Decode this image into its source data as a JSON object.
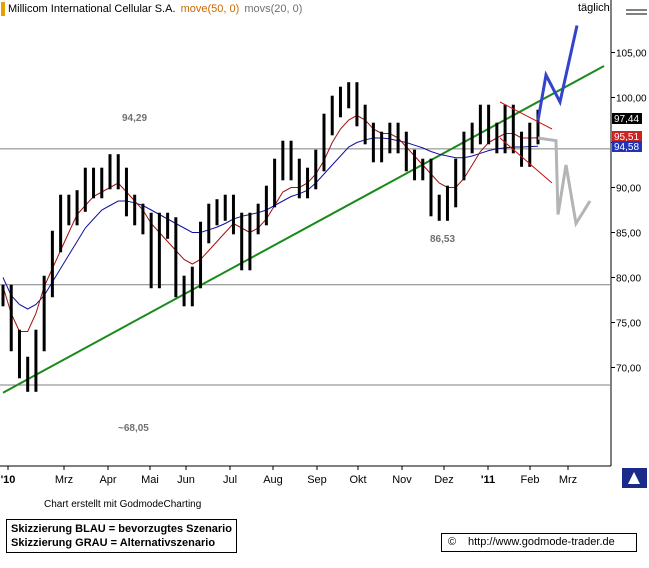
{
  "title": {
    "name": "Millicom International Cellular S.A.",
    "ind1": "move(50, 0)",
    "ind2": "movs(20, 0)",
    "interval": "täglich"
  },
  "footer": {
    "credit": "Chart erstellt mit GodmodeCharting",
    "legend_blue": "Skizzierung BLAU = bevorzugtes Szenario",
    "legend_grey": "Skizzierung GRAU = Alternativszenario",
    "copyright": "©",
    "url": "http://www.godmode-trader.de"
  },
  "colors": {
    "price": "#000000",
    "ma50": "#1010a0",
    "ma20": "#a01010",
    "trendline": "#1a8a1a",
    "blue_scenario": "#3344cc",
    "grey_scenario": "#b4b4b4",
    "channel": "#cc1111",
    "price_badge": "#000000",
    "ma20_badge": "#cc2222",
    "ma50_badge": "#2233bb"
  },
  "chart_data": {
    "type": "ohlc",
    "y_axis": {
      "min": 65,
      "max": 108,
      "ticks": [
        70,
        75,
        80,
        85,
        90,
        95,
        100,
        105
      ],
      "tick_labels": [
        "70,00",
        "75,00",
        "80,00",
        "85,00",
        "90,00",
        "95,00",
        "100,00",
        "105,00"
      ]
    },
    "x_axis": {
      "labels": [
        "'10",
        "Mrz",
        "Apr",
        "Mai",
        "Jun",
        "Jul",
        "Aug",
        "Sep",
        "Okt",
        "Nov",
        "Dez",
        "'11",
        "Feb",
        "Mrz"
      ]
    },
    "grid": false,
    "horizontal_levels": [
      94.29,
      79.2,
      68.05
    ],
    "annotations": [
      {
        "text": "94,29",
        "x_month": "Apr",
        "value": 94.29
      },
      {
        "text": "86,53",
        "x_month": "Dez",
        "value": 86.53
      },
      {
        "text": "~68,05",
        "x_month": "Mrz",
        "value": 68.05
      }
    ],
    "last_values": {
      "price": "97,44",
      "ma20": "95,51",
      "ma50": "94,58"
    },
    "price_series": [
      {
        "x": "'10",
        "y": 78
      },
      {
        "x": "'10",
        "y": 73
      },
      {
        "x": "'10",
        "y": 70
      },
      {
        "x": "'10",
        "y": 68.5
      },
      {
        "x": "'10",
        "y": 73
      },
      {
        "x": "'10",
        "y": 79
      },
      {
        "x": "Mrz",
        "y": 84
      },
      {
        "x": "Mrz",
        "y": 88
      },
      {
        "x": "Mrz",
        "y": 87
      },
      {
        "x": "Mrz",
        "y": 88.5
      },
      {
        "x": "Mrz",
        "y": 91
      },
      {
        "x": "Apr",
        "y": 90
      },
      {
        "x": "Apr",
        "y": 91
      },
      {
        "x": "Apr",
        "y": 92.5
      },
      {
        "x": "Apr",
        "y": 91
      },
      {
        "x": "Apr",
        "y": 88
      },
      {
        "x": "Mai",
        "y": 87
      },
      {
        "x": "Mai",
        "y": 86
      },
      {
        "x": "Mai",
        "y": 80
      },
      {
        "x": "Mai",
        "y": 86
      },
      {
        "x": "Mai",
        "y": 85.5
      },
      {
        "x": "Mai",
        "y": 79
      },
      {
        "x": "Jun",
        "y": 78
      },
      {
        "x": "Jun",
        "y": 80
      },
      {
        "x": "Jun",
        "y": 85
      },
      {
        "x": "Jun",
        "y": 87
      },
      {
        "x": "Jun",
        "y": 87.5
      },
      {
        "x": "Jun",
        "y": 88
      },
      {
        "x": "Jul",
        "y": 86
      },
      {
        "x": "Jul",
        "y": 82
      },
      {
        "x": "Jul",
        "y": 86
      },
      {
        "x": "Jul",
        "y": 87
      },
      {
        "x": "Jul",
        "y": 89
      },
      {
        "x": "Aug",
        "y": 92
      },
      {
        "x": "Aug",
        "y": 94
      },
      {
        "x": "Aug",
        "y": 92
      },
      {
        "x": "Aug",
        "y": 90
      },
      {
        "x": "Sep",
        "y": 91
      },
      {
        "x": "Sep",
        "y": 93
      },
      {
        "x": "Sep",
        "y": 97
      },
      {
        "x": "Sep",
        "y": 99
      },
      {
        "x": "Okt",
        "y": 100
      },
      {
        "x": "Okt",
        "y": 100.5
      },
      {
        "x": "Okt",
        "y": 98
      },
      {
        "x": "Okt",
        "y": 96
      },
      {
        "x": "Okt",
        "y": 94
      },
      {
        "x": "Nov",
        "y": 95
      },
      {
        "x": "Nov",
        "y": 96
      },
      {
        "x": "Nov",
        "y": 95
      },
      {
        "x": "Nov",
        "y": 93
      },
      {
        "x": "Nov",
        "y": 92
      },
      {
        "x": "Dez",
        "y": 92
      },
      {
        "x": "Dez",
        "y": 88
      },
      {
        "x": "Dez",
        "y": 87.5
      },
      {
        "x": "Dez",
        "y": 89
      },
      {
        "x": "Dez",
        "y": 92
      },
      {
        "x": "'11",
        "y": 95
      },
      {
        "x": "'11",
        "y": 96
      },
      {
        "x": "'11",
        "y": 98
      },
      {
        "x": "'11",
        "y": 96
      },
      {
        "x": "'11",
        "y": 95
      },
      {
        "x": "Feb",
        "y": 98
      },
      {
        "x": "Feb",
        "y": 95
      },
      {
        "x": "Feb",
        "y": 93.5
      },
      {
        "x": "Feb",
        "y": 96
      },
      {
        "x": "Feb",
        "y": 97.44
      }
    ],
    "ma20_series": [
      79,
      76,
      74,
      74,
      76,
      79,
      81,
      83,
      85,
      87,
      88,
      89,
      89.5,
      90,
      90.5,
      89.5,
      88.5,
      87.5,
      86,
      85,
      84,
      83,
      82,
      81.5,
      82,
      83,
      84,
      85,
      86,
      85.5,
      85,
      85.5,
      86.5,
      88,
      89.5,
      90,
      90,
      90.5,
      91.5,
      93,
      95,
      96.5,
      97.5,
      98,
      97.5,
      96.5,
      96,
      96,
      95.5,
      94.5,
      93.5,
      92.5,
      91.5,
      90.5,
      90,
      90,
      91,
      92.5,
      94,
      95,
      95.5,
      96,
      96,
      95.5,
      95.5,
      95.51
    ],
    "ma50_series": [
      80,
      78,
      77,
      76.5,
      77,
      78,
      79.5,
      81,
      82.5,
      84,
      85.5,
      86.5,
      87.5,
      88,
      88.5,
      88.5,
      88.3,
      88,
      87.5,
      87,
      86.5,
      86,
      85.5,
      85,
      85,
      85.3,
      85.6,
      86,
      86.5,
      86.8,
      87,
      87.2,
      87.5,
      88,
      88.5,
      89,
      89.3,
      89.7,
      90.5,
      91.5,
      92.5,
      93.5,
      94.5,
      95,
      95.3,
      95.5,
      95.5,
      95.4,
      95.2,
      95,
      94.7,
      94.4,
      94,
      93.7,
      93.5,
      93.3,
      93.3,
      93.5,
      93.8,
      94.1,
      94.3,
      94.4,
      94.5,
      94.5,
      94.55,
      94.58
    ],
    "scenarios": {
      "blue": [
        {
          "x": "Feb",
          "y": 97.44
        },
        {
          "x": "Feb",
          "y": 102.5
        },
        {
          "x": "Mrz",
          "y": 99.5
        },
        {
          "x": "Mrz",
          "y": 108
        }
      ],
      "grey": [
        {
          "x": "Feb",
          "y": 95.5
        },
        {
          "x": "Feb",
          "y": 87
        },
        {
          "x": "Feb",
          "y": 92.5
        },
        {
          "x": "Mrz",
          "y": 86
        },
        {
          "x": "Mrz",
          "y": 88.5
        }
      ]
    }
  }
}
